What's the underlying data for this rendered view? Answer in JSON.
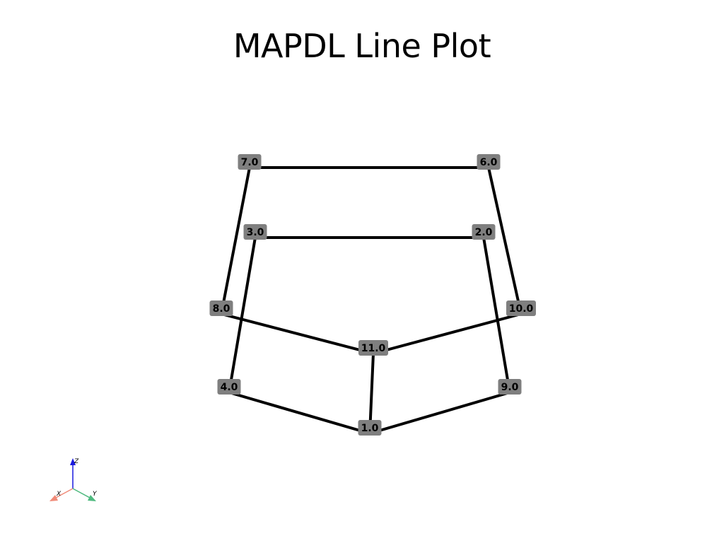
{
  "title": "MAPDL Line Plot",
  "colors": {
    "background": "#ffffff",
    "line": "#000000",
    "label_box": "#7f7f7f",
    "label_text": "#000000",
    "axis_x": "#f08a78",
    "axis_y": "#4fb97f",
    "axis_z": "#1a1adf"
  },
  "keypoints": [
    {
      "id": "kp1",
      "label": "1.0"
    },
    {
      "id": "kp2",
      "label": "2.0"
    },
    {
      "id": "kp3",
      "label": "3.0"
    },
    {
      "id": "kp4",
      "label": "4.0"
    },
    {
      "id": "kp6",
      "label": "6.0"
    },
    {
      "id": "kp7",
      "label": "7.0"
    },
    {
      "id": "kp8",
      "label": "8.0"
    },
    {
      "id": "kp9",
      "label": "9.0"
    },
    {
      "id": "kp10",
      "label": "10.0"
    },
    {
      "id": "kp11",
      "label": "11.0"
    }
  ],
  "lines": [
    [
      "kp7",
      "kp6"
    ],
    [
      "kp3",
      "kp2"
    ],
    [
      "kp7",
      "kp8"
    ],
    [
      "kp6",
      "kp10"
    ],
    [
      "kp3",
      "kp4"
    ],
    [
      "kp2",
      "kp9"
    ],
    [
      "kp8",
      "kp11"
    ],
    [
      "kp10",
      "kp11"
    ],
    [
      "kp11",
      "kp1"
    ],
    [
      "kp4",
      "kp1"
    ],
    [
      "kp9",
      "kp1"
    ]
  ],
  "axes_widget": {
    "x_label": "X",
    "y_label": "Y",
    "z_label": "Z"
  }
}
